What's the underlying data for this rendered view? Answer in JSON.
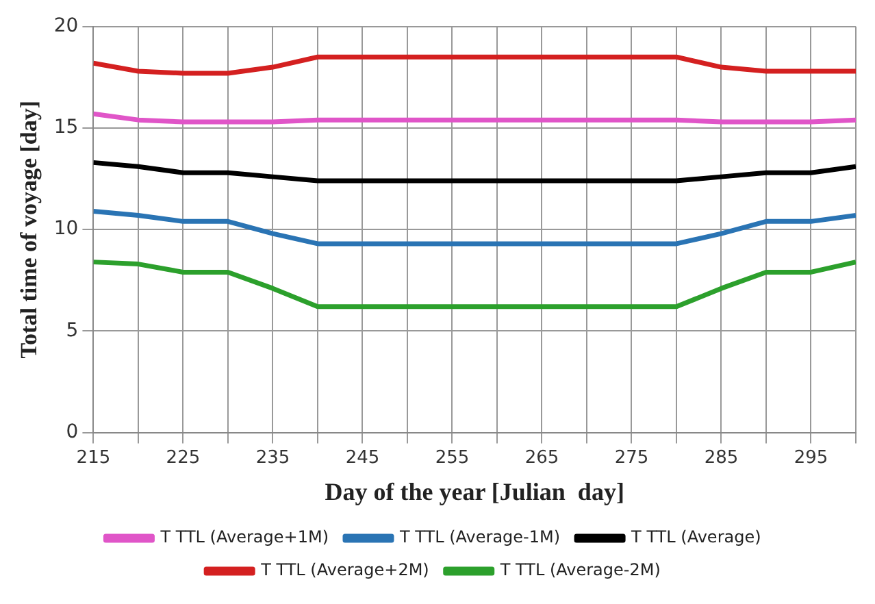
{
  "chart_data": {
    "type": "line",
    "xlabel": "Day of the year [Julian  day]",
    "ylabel": "Total time of voyage [day]",
    "x": [
      215,
      220,
      225,
      230,
      235,
      240,
      245,
      250,
      255,
      260,
      265,
      270,
      275,
      280,
      285,
      290,
      295,
      300
    ],
    "xlim": [
      215,
      300
    ],
    "xticks": [
      215,
      {
        "value": 220,
        "label": null
      },
      225,
      {
        "value": 230,
        "label": null
      },
      235,
      {
        "value": 240,
        "label": null
      },
      245,
      {
        "value": 250,
        "label": null
      },
      255,
      {
        "value": 260,
        "label": null
      },
      265,
      {
        "value": 270,
        "label": null
      },
      275,
      {
        "value": 280,
        "label": null
      },
      285,
      {
        "value": 290,
        "label": null
      },
      295,
      {
        "value": 300,
        "label": null
      }
    ],
    "ylim": [
      0,
      20
    ],
    "yticks": [
      0,
      5,
      10,
      15,
      20
    ],
    "grid": true,
    "legend": "bottom",
    "marker": "none",
    "line_style": "solid",
    "series": [
      {
        "name": "T TTL (Average+1M)",
        "color": "#e055c8",
        "values": [
          15.7,
          15.4,
          15.3,
          15.3,
          15.3,
          15.4,
          15.4,
          15.4,
          15.4,
          15.4,
          15.4,
          15.4,
          15.4,
          15.4,
          15.3,
          15.3,
          15.3,
          15.4
        ]
      },
      {
        "name": "T TTL (Average-1M)",
        "color": "#2a74b4",
        "values": [
          10.9,
          10.7,
          10.4,
          10.4,
          9.8,
          9.3,
          9.3,
          9.3,
          9.3,
          9.3,
          9.3,
          9.3,
          9.3,
          9.3,
          9.8,
          10.4,
          10.4,
          10.7
        ]
      },
      {
        "name": "T TTL (Average)",
        "color": "#000000",
        "values": [
          13.3,
          13.1,
          12.8,
          12.8,
          12.6,
          12.4,
          12.4,
          12.4,
          12.4,
          12.4,
          12.4,
          12.4,
          12.4,
          12.4,
          12.6,
          12.8,
          12.8,
          13.1
        ]
      },
      {
        "name": "T TTL (Average+2M)",
        "color": "#d42020",
        "values": [
          18.2,
          17.8,
          17.7,
          17.7,
          18.0,
          18.5,
          18.5,
          18.5,
          18.5,
          18.5,
          18.5,
          18.5,
          18.5,
          18.5,
          18.0,
          17.8,
          17.8,
          17.8
        ]
      },
      {
        "name": "T TTL (Average-2M)",
        "color": "#2ca02c",
        "values": [
          8.4,
          8.3,
          7.9,
          7.9,
          7.1,
          6.2,
          6.2,
          6.2,
          6.2,
          6.2,
          6.2,
          6.2,
          6.2,
          6.2,
          7.1,
          7.9,
          7.9,
          8.4
        ]
      }
    ]
  }
}
